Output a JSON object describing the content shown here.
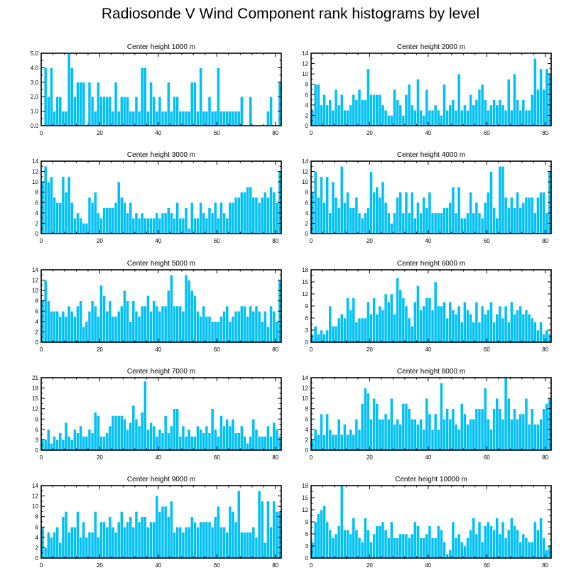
{
  "title": "Radiosonde V Wind Component rank histograms by level",
  "colors": {
    "bar": "#00c0f8",
    "bar_edge": "#ffffff",
    "axis": "#000000"
  },
  "chart_data": [
    {
      "type": "bar",
      "title": "Center height 1000 m",
      "xlim": [
        0,
        82
      ],
      "ylim": [
        0,
        5
      ],
      "xticks": [
        0,
        20,
        40,
        60,
        80
      ],
      "yticks": [
        0,
        1,
        2,
        3,
        4,
        5
      ],
      "ytick_labels": [
        "0.0",
        "1.0",
        "2.0",
        "3.0",
        "4.0",
        "5.0"
      ],
      "values": [
        0,
        4,
        2,
        4,
        1,
        2,
        2,
        1,
        1,
        5,
        4,
        2,
        3,
        3,
        3,
        0,
        3,
        2,
        1,
        3,
        2,
        2,
        2,
        2,
        1,
        3,
        1,
        2,
        2,
        2,
        1,
        1,
        2,
        1,
        4,
        4,
        1,
        3,
        2,
        1,
        2,
        1,
        1,
        3,
        1,
        2,
        2,
        1,
        1,
        1,
        1,
        3,
        3,
        1,
        4,
        1,
        1,
        2,
        1,
        1,
        4,
        1,
        1,
        1,
        1,
        1,
        1,
        1,
        2,
        0,
        0,
        2,
        0,
        0,
        0,
        0,
        0,
        1,
        2,
        0,
        0,
        3
      ]
    },
    {
      "type": "bar",
      "title": "Center height 2000 m",
      "xlim": [
        0,
        82
      ],
      "ylim": [
        0,
        14
      ],
      "xticks": [
        0,
        20,
        40,
        60,
        80
      ],
      "yticks": [
        0,
        2,
        4,
        6,
        8,
        10,
        12,
        14
      ],
      "ytick_labels": [
        "0",
        "2",
        "4",
        "6",
        "8",
        "10",
        "12",
        "14"
      ],
      "values": [
        3,
        8,
        8,
        4,
        6,
        4,
        5,
        3,
        7,
        4,
        6,
        3,
        3,
        4,
        6,
        5,
        7,
        5,
        5,
        11,
        6,
        6,
        6,
        6,
        4,
        3,
        2,
        2,
        7,
        5,
        4,
        2,
        6,
        8,
        4,
        3,
        9,
        3,
        2,
        7,
        3,
        3,
        4,
        3,
        2,
        8,
        3,
        4,
        5,
        3,
        10,
        3,
        4,
        3,
        6,
        4,
        5,
        7,
        8,
        5,
        3,
        4,
        5,
        4,
        5,
        4,
        3,
        9,
        3,
        10,
        5,
        3,
        5,
        3,
        3,
        6,
        13,
        7,
        11,
        7,
        11,
        10
      ]
    },
    {
      "type": "bar",
      "title": "Center height 3000 m",
      "xlim": [
        0,
        82
      ],
      "ylim": [
        0,
        14
      ],
      "xticks": [
        0,
        20,
        40,
        60,
        80
      ],
      "yticks": [
        0,
        2,
        4,
        6,
        8,
        10,
        12,
        14
      ],
      "ytick_labels": [
        "0",
        "2",
        "4",
        "6",
        "8",
        "10",
        "12",
        "14"
      ],
      "values": [
        10,
        13,
        10,
        11,
        7,
        6,
        6,
        11,
        8,
        11,
        6,
        3,
        4,
        3,
        2,
        2,
        7,
        6,
        8,
        4,
        3,
        5,
        5,
        5,
        5,
        6,
        10,
        7,
        6,
        4,
        6,
        3,
        4,
        3,
        4,
        3,
        3,
        3,
        3,
        4,
        3,
        4,
        4,
        5,
        4,
        3,
        6,
        3,
        3,
        5,
        1,
        6,
        3,
        3,
        6,
        4,
        3,
        5,
        4,
        6,
        3,
        6,
        4,
        3,
        6,
        6,
        7,
        7,
        8,
        8,
        9,
        9,
        7,
        7,
        6,
        7,
        8,
        7,
        9,
        8,
        6,
        12
      ]
    },
    {
      "type": "bar",
      "title": "Center height 4000 m",
      "xlim": [
        0,
        82
      ],
      "ylim": [
        0,
        14
      ],
      "xticks": [
        0,
        20,
        40,
        60,
        80
      ],
      "yticks": [
        0,
        2,
        4,
        6,
        8,
        10,
        12,
        14
      ],
      "ytick_labels": [
        "0",
        "2",
        "4",
        "6",
        "8",
        "10",
        "12",
        "14"
      ],
      "values": [
        8,
        12,
        7,
        11,
        6,
        11,
        4,
        10,
        7,
        5,
        13,
        6,
        8,
        5,
        5,
        7,
        4,
        3,
        4,
        5,
        12,
        8,
        9,
        7,
        10,
        6,
        4,
        2,
        4,
        7,
        8,
        4,
        8,
        4,
        8,
        3,
        6,
        4,
        7,
        5,
        8,
        4,
        4,
        4,
        4,
        5,
        5,
        6,
        9,
        4,
        9,
        3,
        3,
        4,
        8,
        4,
        6,
        4,
        3,
        6,
        8,
        12,
        5,
        3,
        13,
        13,
        7,
        5,
        7,
        5,
        8,
        5,
        6,
        7,
        7,
        7,
        4,
        7,
        8,
        8,
        4,
        12
      ]
    },
    {
      "type": "bar",
      "title": "Center height 5000 m",
      "xlim": [
        0,
        82
      ],
      "ylim": [
        0,
        14
      ],
      "xticks": [
        0,
        20,
        40,
        60,
        80
      ],
      "yticks": [
        0,
        2,
        4,
        6,
        8,
        10,
        12,
        14
      ],
      "ytick_labels": [
        "0",
        "2",
        "4",
        "6",
        "8",
        "10",
        "12",
        "14"
      ],
      "values": [
        8,
        12,
        8,
        6,
        6,
        6,
        5,
        6,
        5,
        7,
        6,
        5,
        7,
        8,
        3,
        4,
        6,
        8,
        7,
        5,
        11,
        9,
        6,
        8,
        5,
        5,
        6,
        7,
        10,
        8,
        4,
        8,
        6,
        5,
        7,
        7,
        9,
        6,
        8,
        7,
        6,
        7,
        7,
        10,
        13,
        7,
        7,
        7,
        6,
        13,
        12,
        10,
        9,
        6,
        5,
        7,
        5,
        5,
        4,
        4,
        4,
        5,
        6,
        7,
        4,
        5,
        6,
        6,
        7,
        7,
        5,
        7,
        6,
        7,
        6,
        4,
        6,
        3,
        7,
        6,
        4,
        12
      ]
    },
    {
      "type": "bar",
      "title": "Center height 6000 m",
      "xlim": [
        0,
        82
      ],
      "ylim": [
        0,
        18
      ],
      "xticks": [
        0,
        20,
        40,
        60,
        80
      ],
      "yticks": [
        0,
        3,
        6,
        9,
        12,
        15,
        18
      ],
      "ytick_labels": [
        "0",
        "3",
        "6",
        "9",
        "12",
        "15",
        "18"
      ],
      "values": [
        2,
        4,
        2,
        3,
        2,
        3,
        9,
        4,
        4,
        6,
        7,
        6,
        11,
        8,
        11,
        5,
        6,
        6,
        6,
        10,
        7,
        11,
        7,
        9,
        8,
        12,
        10,
        12,
        7,
        16,
        13,
        11,
        9,
        6,
        4,
        10,
        14,
        8,
        9,
        11,
        11,
        8,
        15,
        9,
        9,
        10,
        6,
        10,
        8,
        7,
        9,
        5,
        10,
        8,
        7,
        5,
        10,
        5,
        9,
        7,
        8,
        10,
        5,
        7,
        9,
        6,
        9,
        5,
        10,
        7,
        8,
        9,
        7,
        8,
        7,
        6,
        5,
        3,
        5,
        2,
        3,
        2
      ]
    },
    {
      "type": "bar",
      "title": "Center height 7000 m",
      "xlim": [
        0,
        82
      ],
      "ylim": [
        0,
        21
      ],
      "xticks": [
        0,
        20,
        40,
        60,
        80
      ],
      "yticks": [
        0,
        3,
        6,
        9,
        12,
        15,
        18,
        21
      ],
      "ytick_labels": [
        "0",
        "3",
        "6",
        "9",
        "12",
        "15",
        "18",
        "21"
      ],
      "values": [
        3,
        3,
        6,
        2,
        4,
        3,
        5,
        3,
        8,
        4,
        3,
        6,
        5,
        7,
        4,
        4,
        6,
        5,
        11,
        10,
        4,
        4,
        5,
        7,
        10,
        10,
        10,
        10,
        9,
        6,
        8,
        13,
        9,
        7,
        11,
        20,
        6,
        8,
        7,
        4,
        6,
        5,
        10,
        5,
        7,
        12,
        12,
        4,
        7,
        4,
        6,
        4,
        4,
        7,
        6,
        5,
        7,
        5,
        12,
        6,
        4,
        10,
        7,
        9,
        7,
        9,
        5,
        5,
        7,
        4,
        2,
        4,
        9,
        6,
        4,
        4,
        4,
        7,
        4,
        8,
        6,
        4
      ]
    },
    {
      "type": "bar",
      "title": "Center height 8000 m",
      "xlim": [
        0,
        82
      ],
      "ylim": [
        0,
        14
      ],
      "xticks": [
        0,
        20,
        40,
        60,
        80
      ],
      "yticks": [
        0,
        2,
        4,
        6,
        8,
        10,
        12,
        14
      ],
      "ytick_labels": [
        "0",
        "2",
        "4",
        "6",
        "8",
        "10",
        "12",
        "14"
      ],
      "values": [
        2,
        4,
        3,
        7,
        3,
        7,
        4,
        3,
        3,
        6,
        3,
        5,
        3,
        4,
        3,
        6,
        4,
        9,
        12,
        11,
        6,
        10,
        9,
        6,
        6,
        7,
        6,
        10,
        5,
        6,
        5,
        9,
        9,
        8,
        6,
        6,
        5,
        6,
        4,
        10,
        7,
        4,
        7,
        4,
        13,
        6,
        8,
        6,
        8,
        5,
        4,
        9,
        7,
        5,
        6,
        6,
        8,
        8,
        8,
        12,
        6,
        4,
        8,
        10,
        8,
        6,
        14,
        10,
        6,
        8,
        6,
        7,
        7,
        10,
        5,
        8,
        5,
        5,
        6,
        8,
        9,
        10
      ]
    },
    {
      "type": "bar",
      "title": "Center height 9000 m",
      "xlim": [
        0,
        82
      ],
      "ylim": [
        0,
        14
      ],
      "xticks": [
        0,
        20,
        40,
        60,
        80
      ],
      "yticks": [
        0,
        2,
        4,
        6,
        8,
        10,
        12,
        14
      ],
      "ytick_labels": [
        "0",
        "2",
        "4",
        "6",
        "8",
        "10",
        "12",
        "14"
      ],
      "values": [
        6,
        2,
        5,
        4,
        5,
        6,
        3,
        8,
        9,
        5,
        6,
        6,
        9,
        4,
        7,
        4,
        5,
        5,
        9,
        4,
        7,
        7,
        6,
        8,
        6,
        5,
        7,
        9,
        6,
        7,
        8,
        6,
        9,
        7,
        8,
        8,
        6,
        7,
        7,
        12,
        9,
        10,
        10,
        8,
        11,
        5,
        6,
        6,
        5,
        6,
        6,
        8,
        7,
        6,
        7,
        7,
        7,
        7,
        6,
        8,
        10,
        6,
        6,
        5,
        10,
        9,
        7,
        13,
        5,
        5,
        5,
        5,
        6,
        4,
        13,
        11,
        3,
        11,
        6,
        11,
        9,
        9
      ]
    },
    {
      "type": "bar",
      "title": "Center height 10000 m",
      "xlim": [
        0,
        82
      ],
      "ylim": [
        0,
        18
      ],
      "xticks": [
        0,
        20,
        40,
        60,
        80
      ],
      "yticks": [
        0,
        3,
        6,
        9,
        12,
        15,
        18
      ],
      "ytick_labels": [
        "0",
        "3",
        "6",
        "9",
        "12",
        "15",
        "18"
      ],
      "values": [
        4,
        9,
        11,
        12,
        13,
        9,
        7,
        5,
        6,
        8,
        18,
        7,
        7,
        6,
        10,
        7,
        5,
        4,
        10,
        7,
        4,
        6,
        8,
        8,
        9,
        7,
        5,
        9,
        5,
        5,
        6,
        6,
        6,
        5,
        6,
        9,
        8,
        5,
        5,
        6,
        8,
        5,
        5,
        8,
        7,
        4,
        1,
        2,
        9,
        5,
        6,
        4,
        3,
        5,
        7,
        10,
        6,
        9,
        4,
        8,
        9,
        8,
        7,
        10,
        6,
        9,
        5,
        7,
        10,
        8,
        7,
        4,
        6,
        5,
        4,
        4,
        9,
        7,
        10,
        5,
        2,
        3
      ]
    }
  ]
}
